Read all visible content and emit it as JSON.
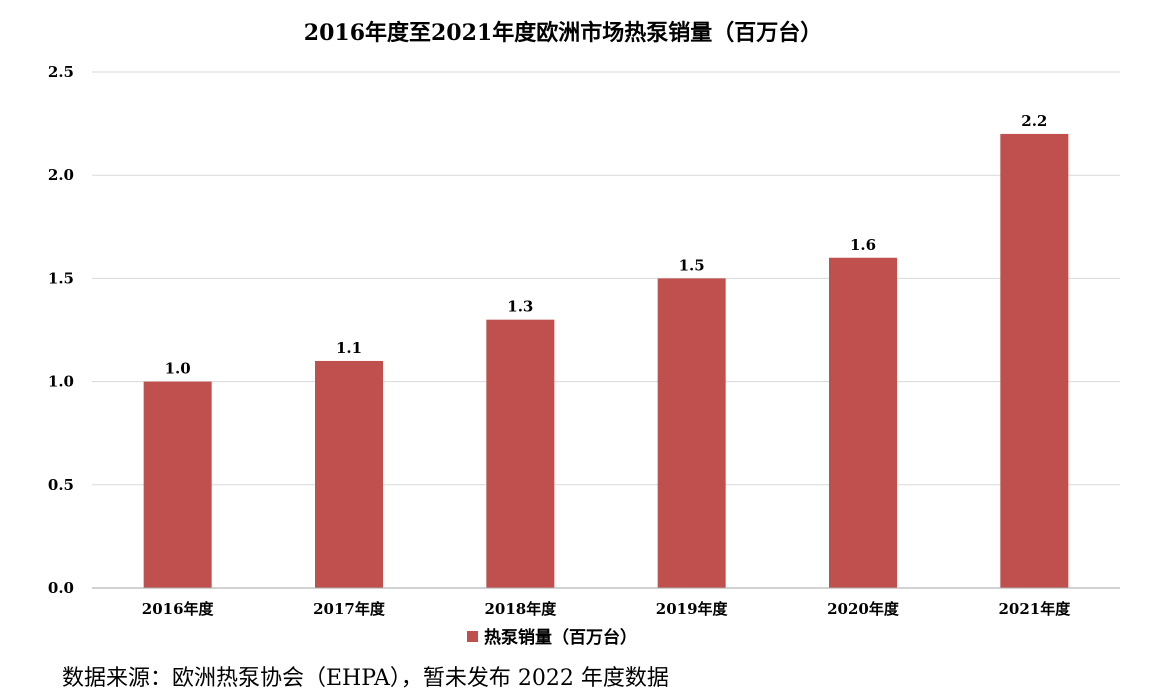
{
  "chart_data": {
    "type": "bar",
    "title": "2016年度至2021年度欧洲市场热泵销量（百万台）",
    "categories": [
      "2016年度",
      "2017年度",
      "2018年度",
      "2019年度",
      "2020年度",
      "2021年度"
    ],
    "series": [
      {
        "name": "热泵销量（百万台）",
        "values": [
          1.0,
          1.1,
          1.3,
          1.5,
          1.6,
          2.2
        ],
        "color": "#C0504D"
      }
    ],
    "data_labels": [
      "1.0",
      "1.1",
      "1.3",
      "1.5",
      "1.6",
      "2.2"
    ],
    "y_ticks": [
      "0.0",
      "0.5",
      "1.0",
      "1.5",
      "2.0",
      "2.5"
    ],
    "ylim": [
      0,
      2.5
    ],
    "grid": true,
    "gridline_color": "#D9D9D9",
    "legend_position": "bottom"
  },
  "source_note": "数据来源：欧洲热泵协会（EHPA），暂未发布 2022 年度数据"
}
